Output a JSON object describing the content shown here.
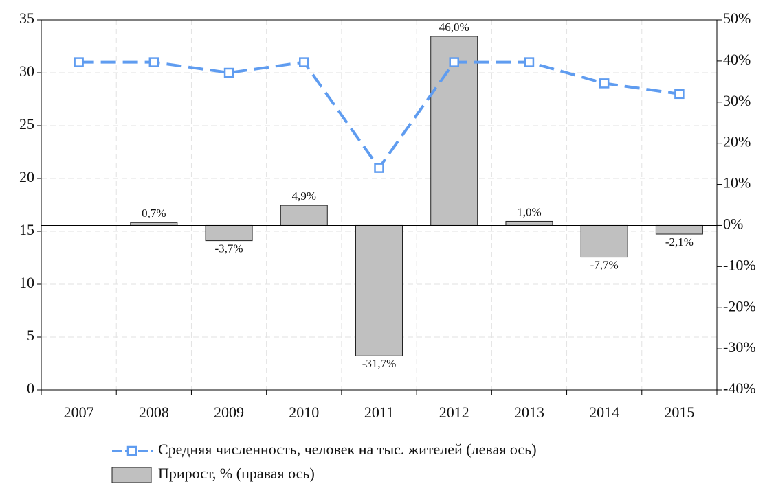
{
  "chart_data": {
    "type": "combo",
    "categories": [
      "2007",
      "2008",
      "2009",
      "2010",
      "2011",
      "2012",
      "2013",
      "2014",
      "2015"
    ],
    "series": [
      {
        "name": "Средняя численность, человек на тыс. жителей (левая ось)",
        "type": "line",
        "color": "#5f9cf0",
        "values": [
          31,
          31,
          30,
          31,
          21,
          31,
          31,
          29,
          28
        ]
      },
      {
        "name": "Прирост, % (правая ось)",
        "type": "bar",
        "axis": "y2",
        "color": "#c0c0c0",
        "values": [
          null,
          0.7,
          -3.7,
          4.9,
          -31.7,
          46.0,
          1.0,
          -7.7,
          -2.1
        ],
        "value_labels": [
          null,
          "0,7%",
          "-3,7%",
          "4,9%",
          "-31,7%",
          "46,0%",
          "1,0%",
          "-7,7%",
          "-2,1%"
        ]
      }
    ],
    "ylim": [
      0,
      35
    ],
    "yticks": [
      0,
      5,
      10,
      15,
      20,
      25,
      30,
      35
    ],
    "y2lim": [
      -40,
      50
    ],
    "y2ticks": [
      {
        "value": -40,
        "label": "-40%"
      },
      {
        "value": -30,
        "label": "-30%"
      },
      {
        "value": -20,
        "label": "-20%"
      },
      {
        "value": -10,
        "label": "-10%"
      },
      {
        "value": 0,
        "label": "0%"
      },
      {
        "value": 10,
        "label": "10%"
      },
      {
        "value": 20,
        "label": "20%"
      },
      {
        "value": 30,
        "label": "30%"
      },
      {
        "value": 40,
        "label": "40%"
      },
      {
        "value": 50,
        "label": "50%"
      }
    ],
    "grid": true
  }
}
